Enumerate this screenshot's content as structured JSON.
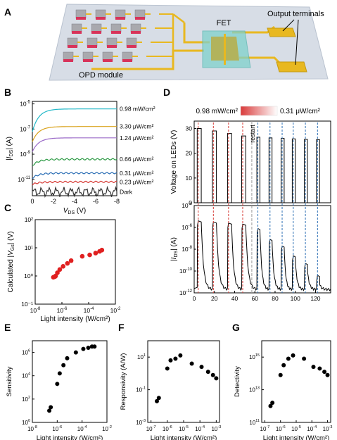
{
  "figure": {
    "panel_labels": [
      "A",
      "B",
      "C",
      "D",
      "E",
      "F",
      "G"
    ],
    "schematic": {
      "fet_label": "FET",
      "output_label": "Output terminals",
      "opd_label": "OPD module"
    }
  },
  "chart_data": [
    {
      "panel": "B",
      "type": "line",
      "xlabel": "V_DS (V)",
      "ylabel": "|I_DS| (A)",
      "xlim": [
        0,
        -8
      ],
      "ylim_log10": [
        -12.3,
        -4.8
      ],
      "log_y": true,
      "x_ticks": [
        "0",
        "-2",
        "-4",
        "-6",
        "-8"
      ],
      "y_tick_exponents": [
        "-5",
        "-7",
        "-9",
        "-11"
      ],
      "series": [
        {
          "name": "0.98 mW/cm²",
          "color": "#22b8c8",
          "plateau_log10": -5.4,
          "onset_log10": -7.2
        },
        {
          "name": "3.30 μW/cm²",
          "color": "#d9a21b",
          "plateau_log10": -6.8,
          "onset_log10": -8.0
        },
        {
          "name": "1.24 μW/cm²",
          "color": "#9b6bc8",
          "plateau_log10": -7.7,
          "onset_log10": -8.8
        },
        {
          "name": "0.66 μW/cm²",
          "color": "#2e9b46",
          "plateau_log10": -9.4,
          "onset_log10": -9.9
        },
        {
          "name": "0.31 μW/cm²",
          "color": "#2c6fb5",
          "plateau_log10": -10.5,
          "onset_log10": -10.9
        },
        {
          "name": "0.23 μW/cm²",
          "color": "#d63a35",
          "plateau_log10": -11.2,
          "onset_log10": -11.4
        },
        {
          "name": "Dark",
          "color": "#333333",
          "plateau_log10": -12.0,
          "onset_log10": -12.0
        }
      ]
    },
    {
      "panel": "C",
      "type": "scatter",
      "xlabel": "Light intensity (W/cm²)",
      "ylabel": "Calculated |V_Gs| (V)",
      "log_x": true,
      "log_y": true,
      "xlim_log10": [
        -8,
        -2
      ],
      "ylim_log10": [
        -1,
        2
      ],
      "x_tick_exponents": [
        "-8",
        "-6",
        "-4",
        "-2"
      ],
      "y_ticks": [
        "10⁻¹",
        "10⁰",
        "10¹",
        "10²"
      ],
      "color": "#e02020",
      "x_log10": [
        -6.64,
        -6.52,
        -6.47,
        -6.34,
        -6.16,
        -5.91,
        -5.59,
        -5.31,
        -4.48,
        -3.92,
        -3.48,
        -3.18,
        -3.01
      ],
      "y": [
        0.9,
        0.95,
        1.0,
        1.3,
        1.7,
        2.2,
        2.8,
        3.5,
        5.0,
        5.6,
        6.5,
        7.5,
        8.3
      ]
    },
    {
      "panel": "D",
      "type": "line",
      "color_bar": {
        "left": "0.98 mW/cm²",
        "right": "0.31 μW/cm²",
        "from": "#d93a3a",
        "to": "#ffffff"
      },
      "annotation": "restart",
      "xlabel": "Time (s)",
      "x_ticks": [
        "0",
        "20",
        "40",
        "60",
        "80",
        "100",
        "120"
      ],
      "xlim": [
        0,
        135
      ],
      "top": {
        "ylabel": "Voltage on LEDs (V)",
        "y_ticks": [
          "0",
          "10",
          "20",
          "30"
        ],
        "ylim": [
          0,
          33
        ],
        "pulses": [
          {
            "start": 3,
            "end": 7,
            "v": 30
          },
          {
            "start": 18,
            "end": 22,
            "v": 29
          },
          {
            "start": 33,
            "end": 37,
            "v": 28
          },
          {
            "start": 47,
            "end": 51,
            "v": 27
          },
          {
            "start": 62,
            "end": 65,
            "v": 26.5
          },
          {
            "start": 74,
            "end": 77,
            "v": 26.2
          },
          {
            "start": 86,
            "end": 89,
            "v": 26
          },
          {
            "start": 97,
            "end": 100,
            "v": 25.8
          },
          {
            "start": 109,
            "end": 112,
            "v": 25.6
          },
          {
            "start": 121,
            "end": 124,
            "v": 25.5
          }
        ]
      },
      "bottom": {
        "ylabel": "|I_DS| (A)",
        "log_y": true,
        "ylim_log10": [
          -12,
          -4
        ],
        "y_tick_exponents": [
          "-4",
          "-6",
          "-8",
          "-10",
          "-12"
        ],
        "pulses": [
          {
            "start": 3,
            "end": 7,
            "peak_log10": -5.4
          },
          {
            "start": 18,
            "end": 22,
            "peak_log10": -5.5
          },
          {
            "start": 33,
            "end": 37,
            "peak_log10": -5.6
          },
          {
            "start": 47,
            "end": 51,
            "peak_log10": -5.7
          },
          {
            "start": 62,
            "end": 65,
            "peak_log10": -6.1
          },
          {
            "start": 74,
            "end": 77,
            "peak_log10": -7.1
          },
          {
            "start": 86,
            "end": 89,
            "peak_log10": -7.7
          },
          {
            "start": 97,
            "end": 100,
            "peak_log10": -8.6
          },
          {
            "start": 109,
            "end": 112,
            "peak_log10": -9.3
          },
          {
            "start": 121,
            "end": 124,
            "peak_log10": -10.4
          }
        ],
        "baseline_log10": -11.7
      },
      "restart_time": 57
    },
    {
      "panel": "E",
      "type": "scatter",
      "xlabel": "Light intensity (W/cm²)",
      "ylabel": "Sensitivity",
      "log_x": true,
      "log_y": true,
      "xlim_log10": [
        -8,
        -2
      ],
      "ylim_log10": [
        0,
        7
      ],
      "x_tick_exponents": [
        "-8",
        "-6",
        "-4",
        "-2"
      ],
      "y_tick_exponents": [
        "0",
        "2",
        "4",
        "6"
      ],
      "x_log10": [
        -6.64,
        -6.52,
        -6.0,
        -5.8,
        -5.5,
        -5.2,
        -4.5,
        -3.9,
        -3.5,
        -3.2,
        -3.0
      ],
      "y_log10": [
        1.0,
        1.3,
        3.3,
        4.2,
        4.9,
        5.5,
        6.0,
        6.3,
        6.4,
        6.5,
        6.5
      ]
    },
    {
      "panel": "F",
      "type": "scatter",
      "xlabel": "Light intensity (W/cm²)",
      "ylabel": "Responsivity (A/W)",
      "log_x": true,
      "log_y": true,
      "xlim_log10": [
        -7.2,
        -2.8
      ],
      "ylim_log10": [
        -3,
        2
      ],
      "x_tick_exponents": [
        "-7",
        "-6",
        "-5",
        "-4",
        "-3"
      ],
      "y_tick_exponents": [
        "-3",
        "-1",
        "1"
      ],
      "x_log10": [
        -6.64,
        -6.52,
        -6.0,
        -5.8,
        -5.5,
        -5.2,
        -4.5,
        -3.9,
        -3.5,
        -3.2,
        -3.0
      ],
      "y_log10": [
        -1.7,
        -1.5,
        0.3,
        0.8,
        0.9,
        1.1,
        0.6,
        0.4,
        0.1,
        -0.1,
        -0.3
      ]
    },
    {
      "panel": "G",
      "type": "scatter",
      "xlabel": "Light intensity (W/cm²)",
      "ylabel": "Detectivity",
      "log_x": true,
      "log_y": true,
      "xlim_log10": [
        -7.2,
        -2.8
      ],
      "ylim_log10": [
        11,
        16
      ],
      "x_tick_exponents": [
        "-7",
        "-6",
        "-5",
        "-4",
        "-3"
      ],
      "y_tick_exponents": [
        "11",
        "13",
        "15"
      ],
      "x_log10": [
        -6.64,
        -6.52,
        -6.0,
        -5.8,
        -5.5,
        -5.2,
        -4.5,
        -3.9,
        -3.5,
        -3.2,
        -3.0
      ],
      "y_log10": [
        12.0,
        12.2,
        13.9,
        14.5,
        14.9,
        15.1,
        14.9,
        14.4,
        14.3,
        14.1,
        13.9
      ]
    }
  ]
}
